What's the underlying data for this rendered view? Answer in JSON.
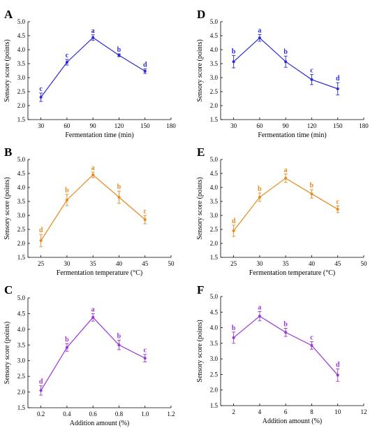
{
  "chart_data": [
    {
      "type": "line",
      "panel_label": "A",
      "color": "#2a2ad8",
      "xlabel": "Fermentation time (min)",
      "ylabel": "Sensory score (points)",
      "xlim": [
        15,
        180
      ],
      "xticks": [
        "30",
        "60",
        "90",
        "120",
        "150",
        "180"
      ],
      "xtick_values": [
        30,
        60,
        90,
        120,
        150,
        180
      ],
      "ylim": [
        1.5,
        5.0
      ],
      "yticks": [
        "1.5",
        "2.0",
        "2.5",
        "3.0",
        "3.5",
        "4.0",
        "4.5",
        "5.0"
      ],
      "ytick_values": [
        1.5,
        2.0,
        2.5,
        3.0,
        3.5,
        4.0,
        4.5,
        5.0
      ],
      "x": [
        30,
        60,
        90,
        120,
        150
      ],
      "values": [
        2.3,
        3.55,
        4.43,
        3.8,
        3.23
      ],
      "errors": [
        0.15,
        0.1,
        0.1,
        0.05,
        0.08
      ],
      "letters": [
        "c",
        "c",
        "a",
        "b",
        "d"
      ]
    },
    {
      "type": "line",
      "panel_label": "D",
      "color": "#2a2ad8",
      "xlabel": "Fermentation time (min)",
      "ylabel": "Sensory score (points)",
      "xlim": [
        15,
        180
      ],
      "xticks": [
        "30",
        "60",
        "90",
        "120",
        "150",
        "180"
      ],
      "xtick_values": [
        30,
        60,
        90,
        120,
        150,
        180
      ],
      "ylim": [
        1.5,
        5.0
      ],
      "yticks": [
        "1.5",
        "2.0",
        "2.5",
        "3.0",
        "3.5",
        "4.0",
        "4.5",
        "5.0"
      ],
      "ytick_values": [
        1.5,
        2.0,
        2.5,
        3.0,
        3.5,
        4.0,
        4.5,
        5.0
      ],
      "x": [
        30,
        60,
        90,
        120,
        150
      ],
      "values": [
        3.57,
        4.42,
        3.57,
        2.93,
        2.6
      ],
      "errors": [
        0.22,
        0.12,
        0.2,
        0.18,
        0.22
      ],
      "letters": [
        "b",
        "a",
        "b",
        "c",
        "d"
      ]
    },
    {
      "type": "line",
      "panel_label": "B",
      "color": "#e68a1e",
      "xlabel": "Fermentation temperature (°C)",
      "ylabel": "Sensory score (points)",
      "xlim": [
        22.5,
        50
      ],
      "xticks": [
        "25",
        "30",
        "35",
        "40",
        "45",
        "50"
      ],
      "xtick_values": [
        25,
        30,
        35,
        40,
        45,
        50
      ],
      "ylim": [
        1.5,
        5.0
      ],
      "yticks": [
        "1.5",
        "2.0",
        "2.5",
        "3.0",
        "3.5",
        "4.0",
        "4.5",
        "5.0"
      ],
      "ytick_values": [
        1.5,
        2.0,
        2.5,
        3.0,
        3.5,
        4.0,
        4.5,
        5.0
      ],
      "x": [
        25,
        30,
        35,
        40,
        45
      ],
      "values": [
        2.1,
        3.55,
        4.45,
        3.65,
        2.85
      ],
      "errors": [
        0.22,
        0.2,
        0.1,
        0.22,
        0.15
      ],
      "letters": [
        "d",
        "b",
        "a",
        "b",
        "c"
      ]
    },
    {
      "type": "line",
      "panel_label": "E",
      "color": "#e68a1e",
      "xlabel": "Fermentation temperature (°C)",
      "ylabel": "Sensory score (points)",
      "xlim": [
        22.5,
        50
      ],
      "xticks": [
        "25",
        "30",
        "35",
        "40",
        "45",
        "50"
      ],
      "xtick_values": [
        25,
        30,
        35,
        40,
        45,
        50
      ],
      "ylim": [
        1.5,
        5.0
      ],
      "yticks": [
        "1.5",
        "2.0",
        "2.5",
        "3.0",
        "3.5",
        "4.0",
        "4.5",
        "5.0"
      ],
      "ytick_values": [
        1.5,
        2.0,
        2.5,
        3.0,
        3.5,
        4.0,
        4.5,
        5.0
      ],
      "x": [
        25,
        30,
        35,
        40,
        45
      ],
      "values": [
        2.45,
        3.65,
        4.33,
        3.77,
        3.22
      ],
      "errors": [
        0.2,
        0.15,
        0.15,
        0.15,
        0.12
      ],
      "letters": [
        "d",
        "b",
        "a",
        "b",
        "c"
      ]
    },
    {
      "type": "line",
      "panel_label": "C",
      "color": "#9a35d8",
      "xlabel": "Addition amount (%)",
      "ylabel": "Sensory score (points)",
      "xlim": [
        0.1,
        1.2
      ],
      "xticks": [
        "0.2",
        "0.4",
        "0.6",
        "0.8",
        "1.0",
        "1.2"
      ],
      "xtick_values": [
        0.2,
        0.4,
        0.6,
        0.8,
        1.0,
        1.2
      ],
      "ylim": [
        1.5,
        5.0
      ],
      "yticks": [
        "1.5",
        "2.0",
        "2.5",
        "3.0",
        "3.5",
        "4.0",
        "4.5",
        "5.0"
      ],
      "ytick_values": [
        1.5,
        2.0,
        2.5,
        3.0,
        3.5,
        4.0,
        4.5,
        5.0
      ],
      "x": [
        0.2,
        0.4,
        0.6,
        0.8,
        1.0
      ],
      "values": [
        2.05,
        3.42,
        4.38,
        3.5,
        3.08
      ],
      "errors": [
        0.15,
        0.12,
        0.12,
        0.15,
        0.12
      ],
      "letters": [
        "d",
        "b",
        "a",
        "b",
        "c"
      ]
    },
    {
      "type": "line",
      "panel_label": "F",
      "color": "#9a35d8",
      "xlabel": "Addition amount (%)",
      "ylabel": "Sensory score (points)",
      "xlim": [
        1,
        12
      ],
      "xticks": [
        "2",
        "4",
        "6",
        "8",
        "10",
        "12"
      ],
      "xtick_values": [
        2,
        4,
        6,
        8,
        10,
        12
      ],
      "ylim": [
        1.5,
        5.0
      ],
      "yticks": [
        "1.5",
        "2.0",
        "2.5",
        "3.0",
        "3.5",
        "4.0",
        "4.5",
        "5.0"
      ],
      "ytick_values": [
        1.5,
        2.0,
        2.5,
        3.0,
        3.5,
        4.0,
        4.5,
        5.0
      ],
      "x": [
        2,
        4,
        6,
        8,
        10
      ],
      "values": [
        3.68,
        4.37,
        3.85,
        3.43,
        2.48
      ],
      "errors": [
        0.18,
        0.15,
        0.13,
        0.12,
        0.2
      ],
      "letters": [
        "b",
        "a",
        "b",
        "c",
        "d"
      ]
    }
  ]
}
